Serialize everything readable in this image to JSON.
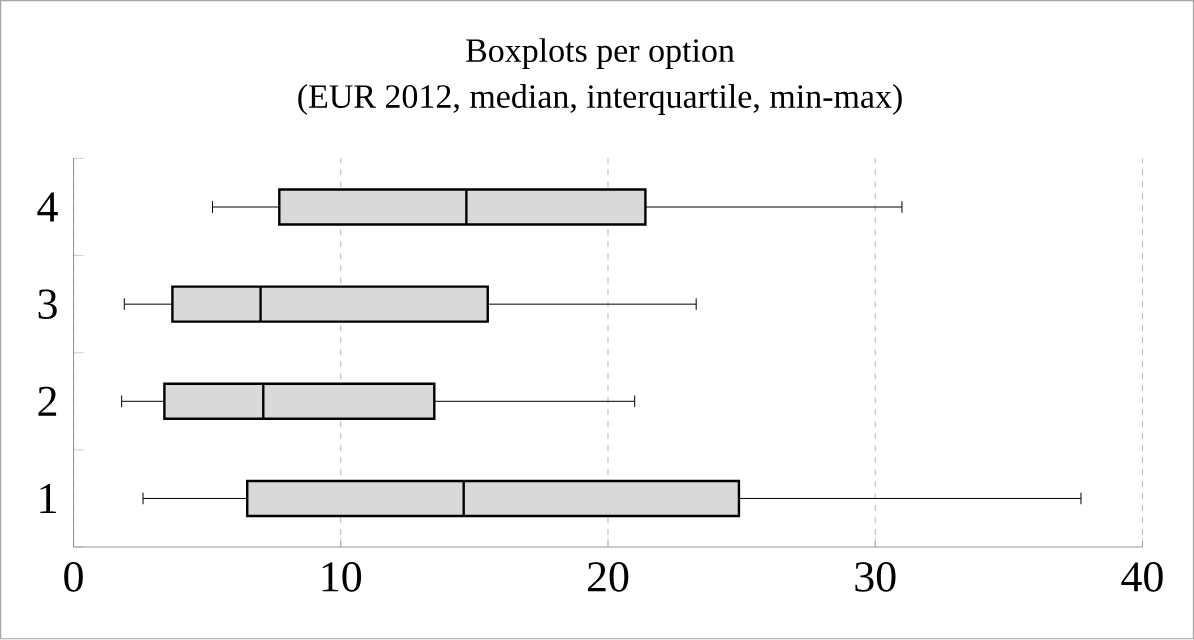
{
  "chart_data": {
    "type": "box",
    "title": "Boxplots per option",
    "subtitle": "(EUR 2012, median, interquartile, min-max)",
    "orientation": "horizontal",
    "categories": [
      "4",
      "3",
      "2",
      "1"
    ],
    "series": [
      {
        "color": "#d9d9d9",
        "boxes": [
          {
            "low": 5.2,
            "q1": 7.7,
            "median": 14.7,
            "q3": 21.4,
            "high": 31.0
          },
          {
            "low": 1.9,
            "q1": 3.7,
            "median": 7.0,
            "q3": 15.5,
            "high": 23.3
          },
          {
            "low": 1.8,
            "q1": 3.4,
            "median": 7.1,
            "q3": 13.5,
            "high": 21.0
          },
          {
            "low": 2.6,
            "q1": 6.5,
            "median": 14.6,
            "q3": 24.9,
            "high": 37.7
          }
        ]
      }
    ],
    "xlim": [
      0,
      40
    ],
    "xticks": [
      0,
      10,
      20,
      30,
      40
    ],
    "grid": "x"
  }
}
